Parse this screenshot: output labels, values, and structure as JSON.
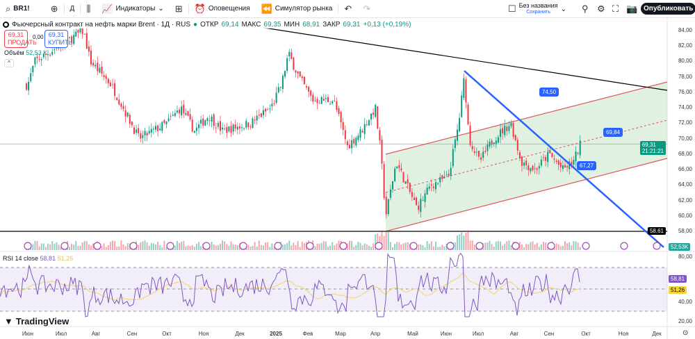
{
  "toolbar": {
    "symbol": "BR1!",
    "interval": "Д",
    "indicators": "Индикаторы",
    "alerts": "Оповещения",
    "replay": "Симулятор рынка",
    "layout_name": "Без названия",
    "layout_save": "Сохранить",
    "publish": "Опубликовать"
  },
  "legend": {
    "title": "Фьючерсный контракт на нефть марки Brent · 1Д · RUS",
    "o_label": "ОТКР",
    "o": "69,14",
    "h_label": "МАКС",
    "h": "69,35",
    "l_label": "МИН",
    "l": "68,91",
    "c_label": "ЗАКР",
    "c": "69,31",
    "change": "+0,13 (+0,19%)"
  },
  "trade": {
    "sell_price": "69,31",
    "sell_label": "ПРОДАТЬ",
    "spread": "0,00",
    "buy_price": "69,31",
    "buy_label": "КУПИТЬ"
  },
  "volume": {
    "label": "Объём",
    "value": "52,53 K"
  },
  "price_axis": [
    "84,00",
    "82,00",
    "80,00",
    "78,00",
    "76,00",
    "74,00",
    "72,00",
    "70,00",
    "68,00",
    "66,00",
    "64,00",
    "62,00",
    "60,00",
    "58,00"
  ],
  "price_tags": {
    "last": "69,31",
    "countdown": "21:21:21",
    "level": "58,61",
    "volume": "52,53K"
  },
  "channel_labels": {
    "upper": "74,50",
    "mid": "69,84",
    "lower": "67,27"
  },
  "rsi": {
    "label": "RSI 14 close",
    "value": "58,81",
    "ma": "51,26",
    "axis": [
      "80,00",
      "40,00",
      "20,00"
    ]
  },
  "dates": [
    "Июн",
    "Июл",
    "Авг",
    "Сен",
    "Окт",
    "Ноя",
    "Дек",
    "2025",
    "Фев",
    "Мар",
    "Апр",
    "Май",
    "Июн",
    "Июл",
    "Авг",
    "Сен",
    "Окт",
    "Ноя",
    "Дек"
  ],
  "logo": "TradingView",
  "colors": {
    "up": "#089981",
    "down": "#f23645",
    "channel": "#e0575b",
    "trend": "#2962ff",
    "rsi": "#7e57c2",
    "rsi_ma": "#f5d77a"
  },
  "price_path": [
    [
      0,
      76
    ],
    [
      40,
      77
    ],
    [
      50,
      80
    ],
    [
      120,
      84
    ],
    [
      130,
      80
    ],
    [
      160,
      77
    ],
    [
      200,
      70
    ],
    [
      240,
      72
    ],
    [
      260,
      74
    ],
    [
      280,
      71
    ],
    [
      300,
      73
    ],
    [
      320,
      71
    ],
    [
      360,
      72
    ],
    [
      390,
      74
    ],
    [
      405,
      77
    ],
    [
      415,
      81
    ],
    [
      430,
      78
    ],
    [
      450,
      75
    ],
    [
      480,
      75
    ],
    [
      500,
      69
    ],
    [
      520,
      71
    ],
    [
      540,
      74
    ],
    [
      548,
      68
    ],
    [
      555,
      60
    ],
    [
      570,
      67
    ],
    [
      590,
      63
    ],
    [
      600,
      61
    ],
    [
      620,
      64
    ],
    [
      645,
      65
    ],
    [
      660,
      72
    ],
    [
      668,
      78
    ],
    [
      675,
      70
    ],
    [
      690,
      67
    ],
    [
      710,
      70
    ],
    [
      735,
      72
    ],
    [
      750,
      67
    ],
    [
      770,
      66
    ],
    [
      790,
      68
    ],
    [
      810,
      66
    ],
    [
      825,
      67
    ],
    [
      835,
      69.31
    ]
  ]
}
